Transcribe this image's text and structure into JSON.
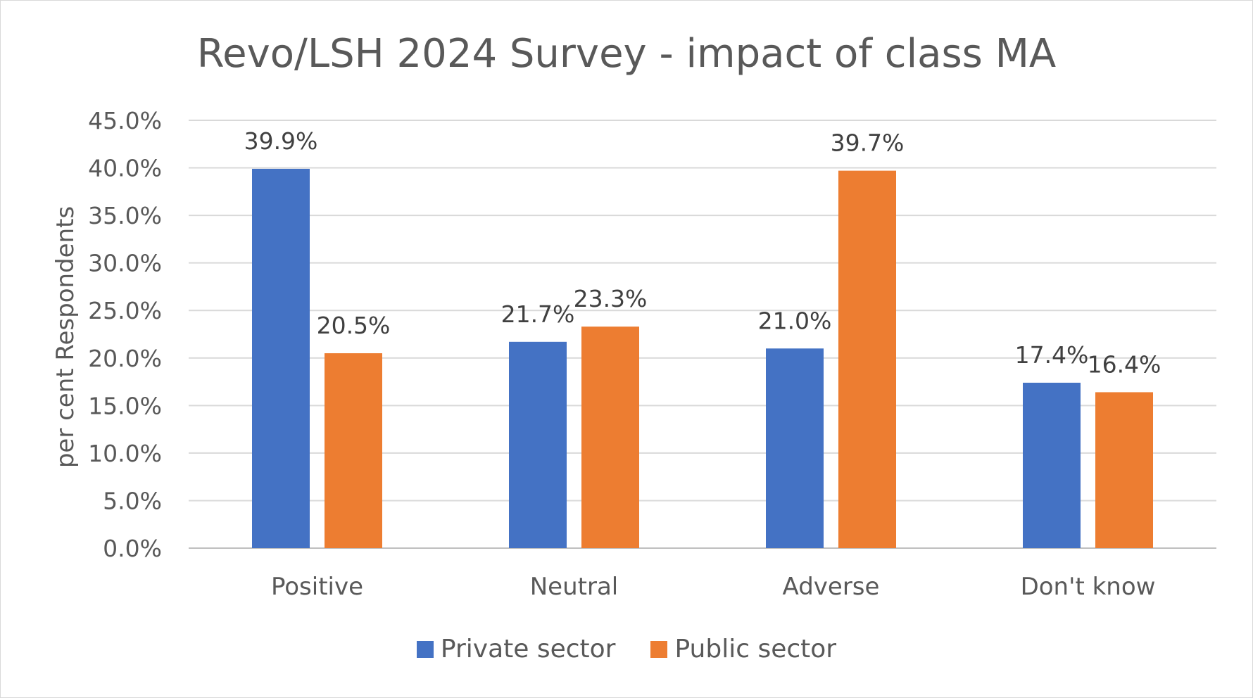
{
  "chart_data": {
    "type": "bar",
    "title": "Revo/LSH 2024 Survey - impact of class MA",
    "xlabel": "",
    "ylabel": "per cent Respondents",
    "categories": [
      "Positive",
      "Neutral",
      "Adverse",
      "Don't know"
    ],
    "series": [
      {
        "name": "Private sector",
        "color": "#4472c4",
        "values": [
          39.9,
          21.7,
          21.0,
          17.4
        ],
        "labels": [
          "39.9%",
          "21.7%",
          "21.0%",
          "17.4%"
        ]
      },
      {
        "name": "Public sector",
        "color": "#ed7d31",
        "values": [
          20.5,
          23.3,
          39.7,
          16.4
        ],
        "labels": [
          "20.5%",
          "23.3%",
          "39.7%",
          "16.4%"
        ]
      }
    ],
    "ylim": [
      0,
      45
    ],
    "yticks": [
      0,
      5,
      10,
      15,
      20,
      25,
      30,
      35,
      40,
      45
    ],
    "ytick_labels": [
      "0.0%",
      "5.0%",
      "10.0%",
      "15.0%",
      "20.0%",
      "25.0%",
      "30.0%",
      "35.0%",
      "40.0%",
      "45.0%"
    ],
    "grid": true,
    "legend": "bottom"
  }
}
